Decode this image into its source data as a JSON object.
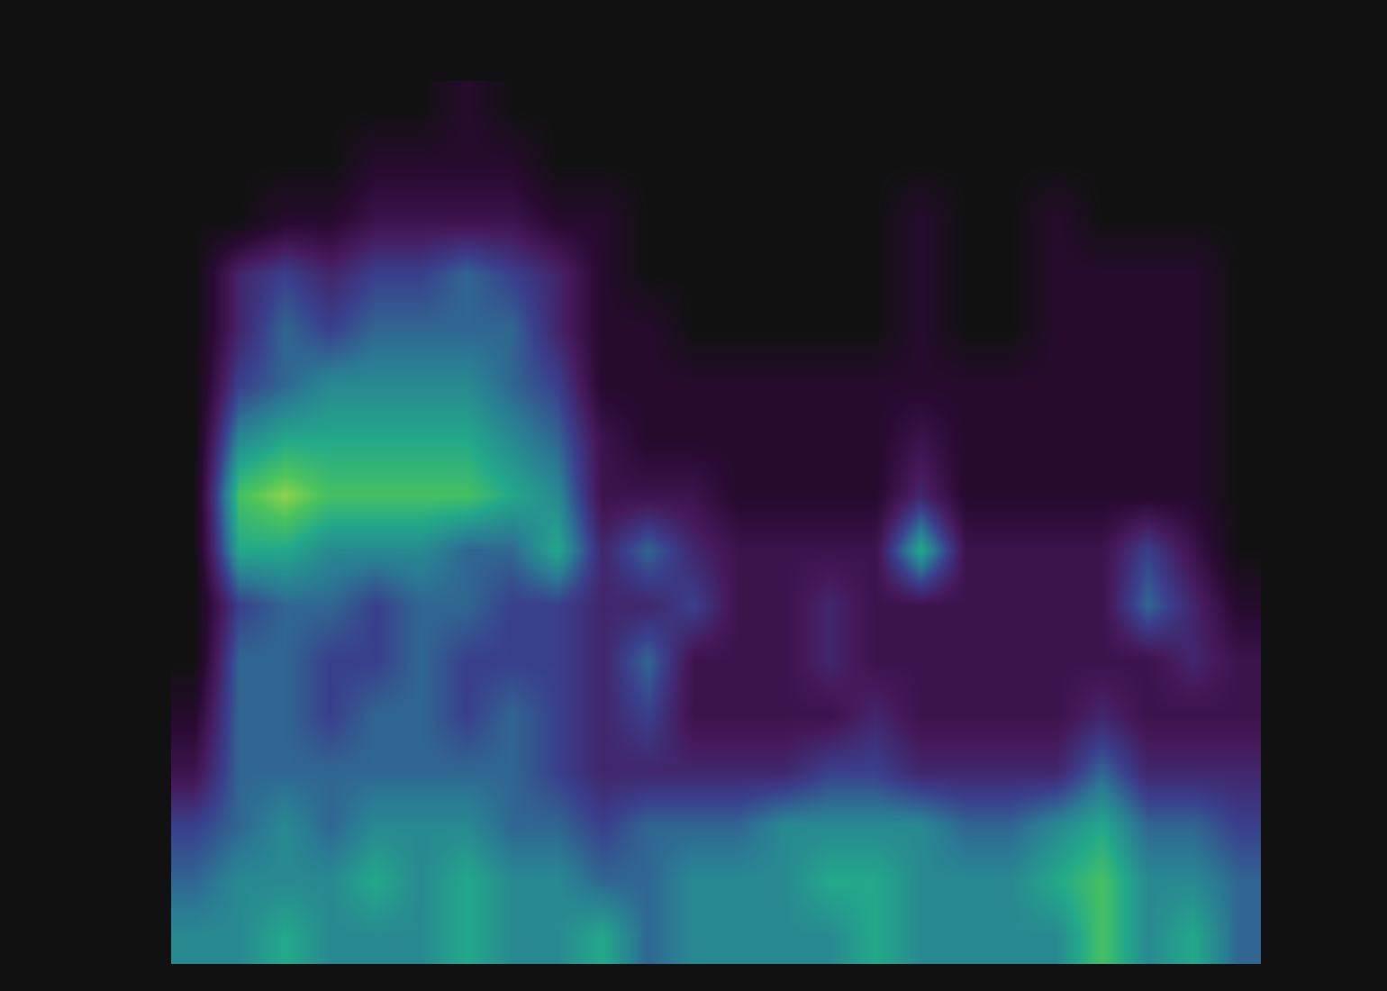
{
  "chart_data": {
    "type": "heatmap",
    "tick_labels": false,
    "zlim": [
      0,
      10
    ],
    "cells": [
      [
        6,
        6,
        7,
        6,
        6,
        6,
        7,
        6,
        6,
        7,
        5,
        6,
        6,
        6,
        6,
        7,
        6,
        6,
        6,
        6,
        8,
        6,
        7,
        5
      ],
      [
        5,
        6,
        6,
        6,
        7,
        6,
        7,
        6,
        6,
        5,
        5,
        6,
        6,
        6,
        7,
        7,
        6,
        6,
        6,
        7,
        8,
        6,
        6,
        5
      ],
      [
        4,
        5,
        6,
        5,
        6,
        6,
        6,
        5,
        5,
        4,
        5,
        5,
        5,
        6,
        6,
        6,
        6,
        5,
        5,
        6,
        7,
        5,
        5,
        4
      ],
      [
        2,
        5,
        5,
        5,
        5,
        5,
        5,
        5,
        4,
        3,
        3,
        3,
        3,
        3,
        4,
        4,
        3,
        3,
        3,
        3,
        5,
        3,
        3,
        3
      ],
      [
        1,
        5,
        5,
        4,
        5,
        5,
        4,
        5,
        4,
        3,
        4,
        2,
        2,
        2,
        2,
        3,
        2,
        2,
        2,
        2,
        3,
        2,
        2,
        2
      ],
      [
        0,
        5,
        5,
        4,
        4,
        5,
        4,
        4,
        4,
        3,
        5,
        2,
        2,
        2,
        3,
        2,
        2,
        2,
        2,
        2,
        2,
        2,
        3,
        2
      ],
      [
        0,
        4,
        5,
        5,
        4,
        5,
        5,
        4,
        4,
        3,
        3,
        4,
        2,
        2,
        3,
        2,
        2,
        2,
        2,
        2,
        2,
        5,
        3,
        1
      ],
      [
        0,
        7,
        7,
        6,
        6,
        6,
        5,
        5,
        7,
        3,
        5,
        3,
        2,
        2,
        2,
        2,
        7,
        2,
        2,
        2,
        2,
        4,
        2,
        0
      ],
      [
        0,
        8,
        9,
        8,
        8,
        8,
        8,
        7,
        6,
        2,
        2,
        2,
        1,
        1,
        1,
        1,
        3,
        1,
        1,
        1,
        1,
        1,
        1,
        0
      ],
      [
        0,
        6,
        7,
        7,
        7,
        7,
        7,
        6,
        5,
        2,
        1,
        1,
        1,
        1,
        1,
        1,
        2,
        1,
        1,
        1,
        1,
        1,
        1,
        0
      ],
      [
        0,
        4,
        5,
        6,
        6,
        6,
        6,
        5,
        4,
        1,
        1,
        1,
        1,
        1,
        1,
        1,
        1,
        1,
        1,
        1,
        1,
        1,
        1,
        0
      ],
      [
        0,
        3,
        5,
        4,
        5,
        5,
        5,
        5,
        3,
        1,
        1,
        0,
        0,
        0,
        0,
        0,
        1,
        0,
        0,
        1,
        1,
        1,
        1,
        0
      ],
      [
        0,
        3,
        4,
        3,
        4,
        4,
        5,
        4,
        3,
        1,
        0,
        0,
        0,
        0,
        0,
        0,
        1,
        0,
        0,
        1,
        1,
        1,
        1,
        0
      ],
      [
        0,
        0,
        1,
        1,
        2,
        2,
        2,
        2,
        1,
        1,
        0,
        0,
        0,
        0,
        0,
        0,
        1,
        0,
        0,
        1,
        0,
        0,
        0,
        0
      ],
      [
        0,
        0,
        0,
        0,
        1,
        1,
        1,
        1,
        0,
        0,
        0,
        0,
        0,
        0,
        0,
        0,
        0,
        0,
        0,
        0,
        0,
        0,
        0,
        0
      ],
      [
        0,
        0,
        0,
        0,
        0,
        0,
        1,
        0,
        0,
        0,
        0,
        0,
        0,
        0,
        0,
        0,
        0,
        0,
        0,
        0,
        0,
        0,
        0,
        0
      ]
    ]
  }
}
